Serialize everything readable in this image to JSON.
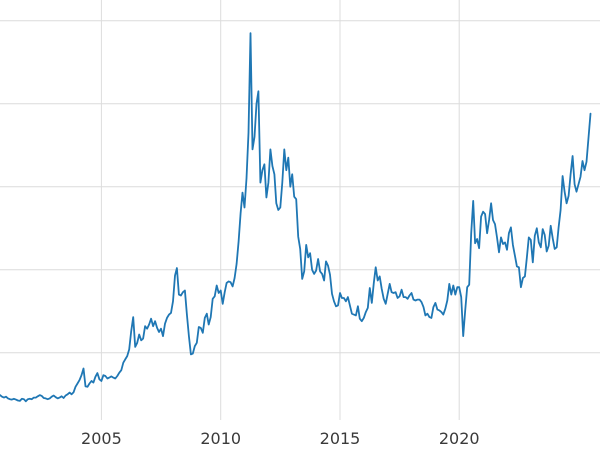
{
  "chart_data": {
    "type": "line",
    "title": "",
    "xlabel": "",
    "ylabel": "",
    "legend": [],
    "grid": true,
    "line_color": "#1f77b4",
    "grid_color": "#dcdcdc",
    "tick_label_color": "#3a3a3a",
    "background_color": "#ffffff",
    "xlim": [
      2000.75,
      2025.9
    ],
    "ylim": [
      2.5,
      52.5
    ],
    "x_tick_positions": [
      2005,
      2010,
      2015,
      2020
    ],
    "x_tick_labels": [
      "2005",
      "2010",
      "2015",
      "2020"
    ],
    "y_tick_labels": [],
    "y_gridlines": [
      10,
      20,
      30,
      40,
      50
    ],
    "x_start": 2000.75,
    "x_step_years": 0.0833333,
    "values": [
      4.9,
      4.7,
      4.6,
      4.7,
      4.5,
      4.4,
      4.35,
      4.45,
      4.35,
      4.25,
      4.2,
      4.45,
      4.4,
      4.15,
      4.4,
      4.45,
      4.4,
      4.6,
      4.6,
      4.75,
      4.9,
      4.8,
      4.55,
      4.5,
      4.4,
      4.5,
      4.7,
      4.85,
      4.65,
      4.5,
      4.6,
      4.75,
      4.55,
      4.85,
      5.0,
      5.2,
      5.0,
      5.25,
      5.9,
      6.3,
      6.7,
      7.3,
      8.1,
      5.95,
      5.9,
      6.3,
      6.6,
      6.4,
      7.1,
      7.55,
      6.8,
      6.6,
      7.3,
      7.2,
      6.9,
      7.0,
      7.15,
      7.0,
      6.9,
      7.2,
      7.6,
      7.9,
      8.8,
      9.2,
      9.6,
      10.4,
      12.6,
      14.3,
      10.7,
      11.2,
      12.2,
      11.5,
      11.7,
      13.2,
      12.9,
      13.4,
      14.1,
      13.2,
      13.8,
      13.0,
      12.5,
      12.9,
      12.0,
      13.5,
      14.2,
      14.6,
      14.8,
      16.2,
      19.3,
      20.2,
      17.0,
      16.9,
      17.3,
      17.5,
      14.6,
      12.0,
      9.8,
      9.9,
      10.8,
      11.2,
      13.1,
      13.0,
      12.4,
      14.2,
      14.7,
      13.4,
      14.3,
      16.5,
      16.8,
      18.1,
      17.2,
      17.5,
      15.9,
      17.3,
      18.4,
      18.6,
      18.5,
      18.0,
      19.0,
      20.7,
      23.4,
      26.8,
      29.3,
      27.5,
      31.0,
      36.5,
      48.5,
      34.5,
      36.0,
      40.0,
      41.5,
      30.5,
      32.0,
      32.7,
      28.7,
      30.5,
      34.5,
      32.5,
      31.5,
      28.0,
      27.2,
      27.5,
      30.5,
      34.5,
      32.0,
      33.5,
      30.0,
      31.5,
      28.8,
      28.5,
      24.0,
      22.5,
      18.9,
      19.8,
      23.0,
      21.5,
      22.0,
      20.0,
      19.5,
      19.9,
      21.3,
      19.8,
      19.5,
      18.7,
      21.0,
      20.5,
      19.4,
      17.1,
      16.2,
      15.6,
      15.7,
      17.2,
      16.6,
      16.6,
      16.2,
      16.7,
      15.7,
      14.7,
      14.6,
      14.5,
      15.6,
      14.1,
      13.8,
      14.2,
      14.9,
      15.4,
      17.8,
      16.0,
      18.4,
      20.3,
      18.7,
      19.2,
      17.7,
      16.5,
      15.9,
      17.1,
      18.3,
      17.3,
      17.2,
      17.3,
      16.6,
      16.8,
      17.6,
      16.7,
      16.7,
      16.5,
      16.9,
      17.2,
      16.4,
      16.3,
      16.4,
      16.4,
      16.1,
      15.5,
      14.5,
      14.7,
      14.3,
      14.2,
      15.5,
      16.0,
      15.2,
      15.1,
      14.9,
      14.6,
      15.3,
      16.3,
      18.3,
      17.0,
      18.1,
      17.0,
      17.9,
      17.9,
      16.7,
      12.0,
      15.1,
      17.9,
      18.2,
      24.4,
      28.3,
      23.2,
      23.7,
      22.6,
      26.4,
      27.0,
      26.7,
      24.4,
      26.0,
      28.0,
      26.0,
      25.5,
      23.9,
      22.1,
      23.9,
      23.1,
      23.3,
      22.4,
      24.4,
      25.1,
      23.0,
      21.7,
      20.4,
      20.3,
      17.9,
      19.0,
      19.2,
      21.4,
      23.9,
      23.6,
      20.9,
      24.1,
      25.0,
      23.3,
      22.7,
      24.9,
      24.2,
      22.2,
      22.9,
      25.3,
      23.8,
      22.5,
      22.7,
      25.1,
      27.2,
      31.3,
      29.4,
      28.0,
      28.9,
      31.5,
      33.7,
      30.3,
      29.4,
      30.3,
      31.2,
      33.1,
      32.0,
      33.0,
      35.9,
      38.8
    ]
  }
}
